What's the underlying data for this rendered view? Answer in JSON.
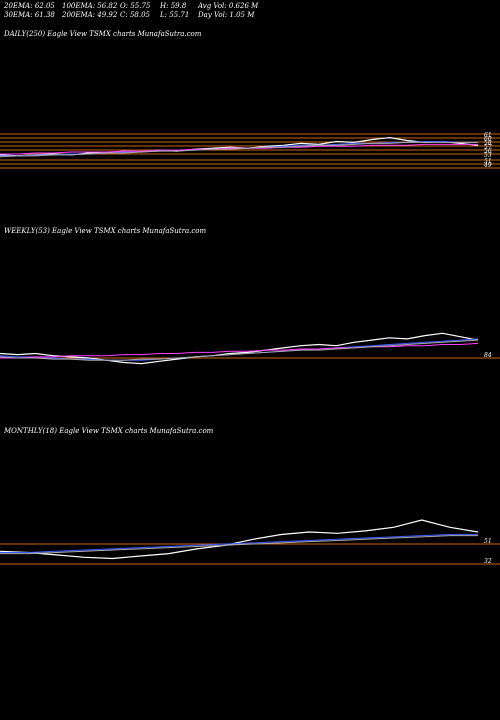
{
  "header": {
    "ema20": "20EMA: 62.05",
    "ema100": "100EMA: 56.82",
    "open": "O: 55.75",
    "high": "H: 59.8",
    "avg_vol": "Avg Vol: 0.626  M",
    "ema30": "30EMA: 61.38",
    "ema200": "200EMA: 49.92",
    "close": "C: 58.05",
    "low": "L: 55.71",
    "day_vol": "Day Vol: 1.05  M"
  },
  "chart_data": [
    {
      "type": "line",
      "title": "DAILY(250) Eagle   View  TSMX  charts MunafaSutra.com",
      "ylim": [
        0,
        100
      ],
      "price_labels": [
        "61",
        "60",
        "58",
        "57",
        "56",
        "53",
        "51",
        "49"
      ],
      "series": [
        {
          "color": "#ffffff",
          "values": [
            48,
            47,
            48,
            49,
            48,
            50,
            50,
            52,
            51,
            53,
            52,
            54,
            55,
            56,
            55,
            57,
            58,
            60,
            59,
            62,
            61,
            64,
            66,
            63,
            61,
            62,
            60,
            58
          ]
        },
        {
          "color": "#3c5aff",
          "values": [
            47,
            47,
            48,
            48,
            49,
            49,
            50,
            51,
            51,
            52,
            53,
            53,
            54,
            55,
            55,
            56,
            57,
            58,
            58,
            59,
            60,
            60,
            61,
            61,
            62,
            62,
            61,
            61
          ]
        },
        {
          "color": "#ff3cff",
          "values": [
            49,
            49,
            50,
            50,
            51,
            51,
            51,
            52,
            52,
            53,
            53,
            54,
            54,
            55,
            55,
            55,
            56,
            56,
            57,
            57,
            57,
            58,
            58,
            58,
            59,
            59,
            59,
            59
          ]
        },
        {
          "color": "#aaaaaa",
          "values": [
            46,
            47,
            47,
            48,
            48,
            49,
            50,
            50,
            51,
            52,
            52,
            53,
            54,
            54,
            55,
            56,
            56,
            57,
            58,
            58,
            59,
            60,
            60,
            61,
            61,
            61,
            61,
            61
          ]
        }
      ]
    },
    {
      "type": "line",
      "title": "WEEKLY(53) Eagle   View  TSMX  charts MunafaSutra.com",
      "ylim": [
        0,
        100
      ],
      "price_labels": [
        "84"
      ],
      "series": [
        {
          "color": "#ffffff",
          "values": [
            50,
            49,
            50,
            48,
            47,
            46,
            44,
            42,
            41,
            43,
            45,
            47,
            48,
            50,
            51,
            53,
            55,
            57,
            58,
            57,
            60,
            62,
            64,
            63,
            66,
            68,
            65,
            62
          ]
        },
        {
          "color": "#3c5aff",
          "values": [
            48,
            47,
            47,
            46,
            45,
            45,
            44,
            44,
            44,
            45,
            46,
            47,
            48,
            49,
            50,
            51,
            52,
            53,
            54,
            55,
            56,
            57,
            58,
            59,
            60,
            61,
            62,
            63
          ]
        },
        {
          "color": "#ff3cff",
          "values": [
            46,
            46,
            47,
            47,
            48,
            48,
            48,
            49,
            49,
            50,
            50,
            51,
            51,
            52,
            52,
            53,
            53,
            54,
            54,
            55,
            55,
            56,
            56,
            57,
            57,
            58,
            58,
            59
          ]
        },
        {
          "color": "#aaaaaa",
          "values": [
            47,
            46,
            46,
            45,
            45,
            44,
            44,
            44,
            45,
            45,
            46,
            47,
            48,
            49,
            50,
            51,
            52,
            53,
            53,
            54,
            55,
            56,
            57,
            58,
            59,
            60,
            61,
            62
          ]
        }
      ]
    },
    {
      "type": "line",
      "title": "MONTHLY(18) Eagle   View  TSMX  charts MunafaSutra.com",
      "ylim": [
        0,
        100
      ],
      "price_labels": [
        "51",
        "32"
      ],
      "series": [
        {
          "color": "#ffffff",
          "values": [
            50,
            49,
            47,
            45,
            44,
            46,
            48,
            52,
            55,
            60,
            64,
            66,
            65,
            67,
            70,
            76,
            70,
            66
          ]
        },
        {
          "color": "#3c5aff",
          "values": [
            49,
            49,
            50,
            51,
            52,
            53,
            54,
            55,
            56,
            57,
            58,
            59,
            60,
            61,
            62,
            63,
            64,
            64
          ]
        },
        {
          "color": "#aaaaaa",
          "values": [
            48,
            48,
            49,
            50,
            51,
            52,
            53,
            54,
            55,
            56,
            57,
            58,
            59,
            60,
            61,
            62,
            63,
            63
          ]
        }
      ]
    }
  ]
}
